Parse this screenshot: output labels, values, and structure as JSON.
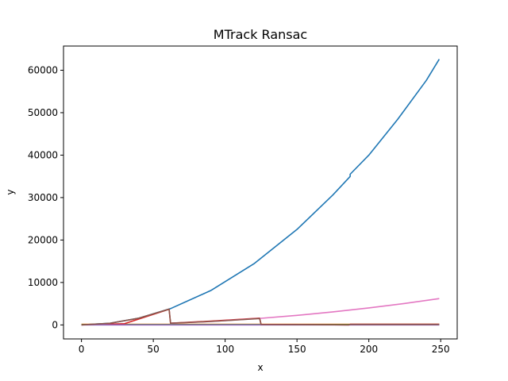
{
  "chart_data": {
    "type": "line",
    "title": "MTrack Ransac",
    "xlabel": "x",
    "ylabel": "y",
    "xlim": [
      -12.5,
      261.5
    ],
    "ylim": [
      -3300,
      65700
    ],
    "xticks": [
      0,
      50,
      100,
      150,
      200,
      250
    ],
    "yticks": [
      0,
      10000,
      20000,
      30000,
      40000,
      50000,
      60000
    ],
    "grid": false,
    "series": [
      {
        "color": "#1f77b4",
        "x": [
          0,
          20,
          40,
          62,
          90,
          120,
          150,
          175,
          187,
          187,
          200,
          220,
          240,
          249
        ],
        "y": [
          0,
          400,
          1600,
          3844,
          8100,
          14400,
          22500,
          30625,
          34969,
          35500,
          40000,
          48400,
          57600,
          62600
        ]
      },
      {
        "color": "#ff7f0e",
        "x": [
          0,
          100,
          200,
          249
        ],
        "y": [
          150,
          150,
          150,
          150
        ]
      },
      {
        "color": "#2ca02c",
        "x": [
          0,
          249
        ],
        "y": [
          80,
          80
        ]
      },
      {
        "color": "#d62728",
        "x": [
          0,
          30,
          61,
          62,
          90,
          124,
          125,
          186,
          187,
          249
        ],
        "y": [
          0,
          300,
          3700,
          400,
          900,
          1600,
          120,
          0,
          150,
          150
        ]
      },
      {
        "color": "#9467bd",
        "x": [
          0,
          249
        ],
        "y": [
          0,
          0
        ]
      },
      {
        "color": "#e377c2",
        "x": [
          62,
          90,
          125,
          150,
          175,
          200,
          225,
          249
        ],
        "y": [
          384,
          810,
          1563,
          2250,
          3063,
          4000,
          5063,
          6200
        ]
      },
      {
        "color": "#8c564b",
        "x": [
          0,
          20,
          40,
          61,
          62,
          80,
          100,
          124,
          125,
          150,
          186,
          187,
          220,
          249
        ],
        "y": [
          0,
          400,
          1600,
          3721,
          400,
          650,
          1000,
          1500,
          110,
          80,
          0,
          120,
          120,
          120
        ]
      }
    ]
  }
}
